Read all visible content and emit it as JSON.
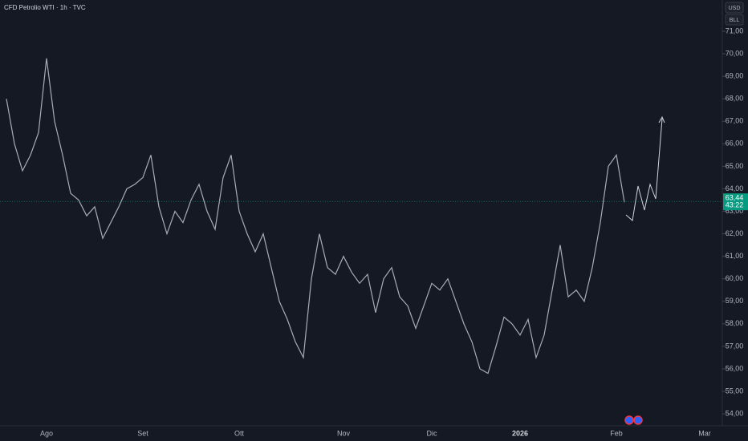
{
  "chart_data": {
    "type": "line",
    "title": "CFD Petrolio WTI · 1h · TVC",
    "currency": "USD",
    "unit": "BLL",
    "categories": [
      null,
      null,
      null,
      null,
      null,
      "Ago",
      null,
      null,
      null,
      null,
      null,
      null,
      null,
      null,
      null,
      null,
      null,
      "Set",
      null,
      null,
      null,
      null,
      null,
      null,
      null,
      null,
      null,
      null,
      null,
      "Ott",
      null,
      null,
      null,
      null,
      null,
      null,
      null,
      null,
      null,
      null,
      null,
      null,
      "Nov",
      null,
      null,
      null,
      null,
      null,
      null,
      null,
      null,
      null,
      null,
      "Dic",
      null,
      null,
      null,
      null,
      null,
      null,
      null,
      null,
      null,
      null,
      "2026",
      null,
      null,
      null,
      null,
      null,
      null,
      null,
      null,
      null,
      null,
      null,
      "Feb",
      null,
      null,
      null,
      null,
      null,
      null,
      null,
      null,
      null,
      null,
      "Mar",
      null
    ],
    "series": [
      {
        "name": "CFD Petrolio WTI",
        "color": "#a7adb8",
        "values": [
          68.0,
          66.0,
          64.8,
          65.5,
          66.5,
          69.8,
          67.0,
          65.5,
          63.8,
          63.5,
          62.8,
          63.2,
          61.8,
          62.5,
          63.2,
          64.0,
          64.2,
          64.5,
          65.5,
          63.2,
          62.0,
          63.0,
          62.5,
          63.5,
          64.2,
          63.0,
          62.2,
          64.5,
          65.5,
          63.0,
          62.0,
          61.2,
          62.0,
          60.5,
          59.0,
          58.2,
          57.2,
          56.5,
          60.0,
          62.0,
          60.5,
          60.2,
          61.0,
          60.3,
          59.8,
          60.2,
          58.5,
          60.0,
          60.5,
          59.2,
          58.8,
          57.8,
          58.8,
          59.8,
          59.5,
          60.0,
          59.0,
          58.0,
          57.2,
          56.0,
          55.8,
          57.0,
          58.3,
          58.0,
          57.5,
          58.2,
          56.5,
          57.5,
          59.5,
          61.5,
          59.2,
          59.5,
          59.0,
          60.5,
          62.5,
          65.0,
          65.5,
          63.4,
          null,
          null,
          null,
          null,
          null,
          null,
          null,
          null,
          null,
          null,
          null
        ]
      }
    ],
    "ylim": [
      53.47,
      72.39
    ],
    "yticks": [
      {
        "value": 54,
        "label": "54,00"
      },
      {
        "value": 55,
        "label": "55,00"
      },
      {
        "value": 56,
        "label": "56,00"
      },
      {
        "value": 57,
        "label": "57,00"
      },
      {
        "value": 58,
        "label": "58,00"
      },
      {
        "value": 59,
        "label": "59,00"
      },
      {
        "value": 60,
        "label": "60,00"
      },
      {
        "value": 61,
        "label": "61,00"
      },
      {
        "value": 62,
        "label": "62,00"
      },
      {
        "value": 63,
        "label": "63,00"
      },
      {
        "value": 64,
        "label": "64,00"
      },
      {
        "value": 65,
        "label": "65,00"
      },
      {
        "value": 66,
        "label": "66,00"
      },
      {
        "value": 67,
        "label": "67,00"
      },
      {
        "value": 68,
        "label": "68,00"
      },
      {
        "value": 69,
        "label": "69,00"
      },
      {
        "value": 70,
        "label": "70,00"
      },
      {
        "value": 71,
        "label": "71,00"
      }
    ],
    "last_price": {
      "value": 63.44,
      "label": "63,44",
      "color": "#089981"
    },
    "countdown": "43:22"
  }
}
